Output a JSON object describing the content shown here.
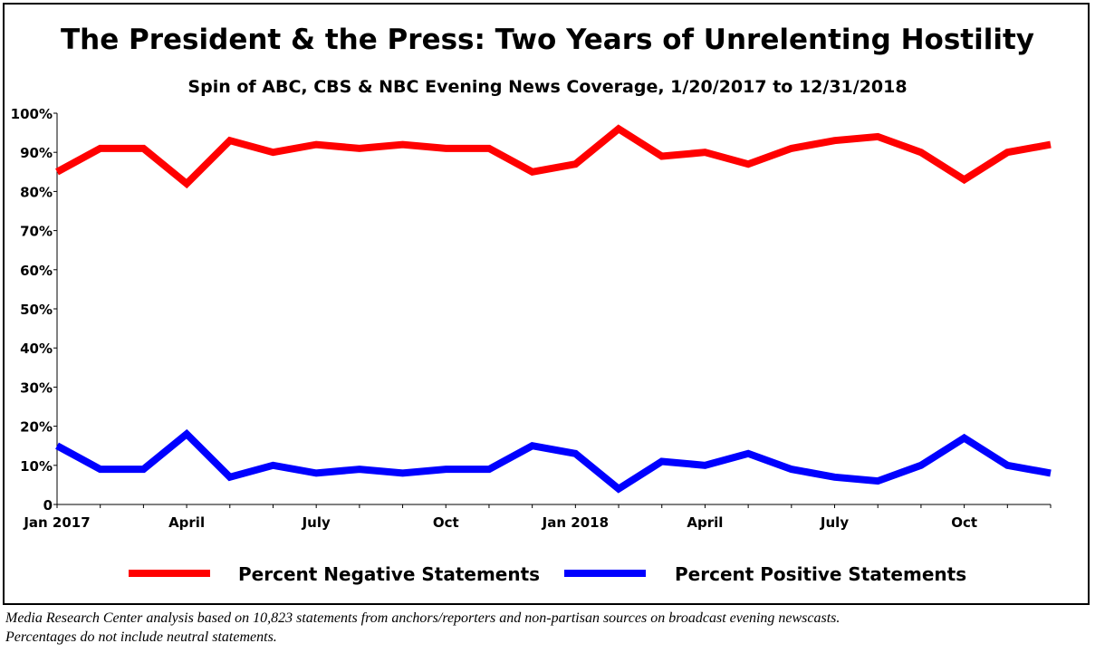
{
  "chart_data": {
    "type": "line",
    "title": "The President & the Press: Two Years of Unrelenting Hostility",
    "subtitle": "Spin of ABC, CBS & NBC Evening News Coverage, 1/20/2017 to 12/31/2018",
    "x": [
      "Jan 2017",
      "Feb 2017",
      "Mar 2017",
      "Apr 2017",
      "May 2017",
      "Jun 2017",
      "Jul 2017",
      "Aug 2017",
      "Sep 2017",
      "Oct 2017",
      "Nov 2017",
      "Dec 2017",
      "Jan 2018",
      "Feb 2018",
      "Mar 2018",
      "Apr 2018",
      "May 2018",
      "Jun 2018",
      "Jul 2018",
      "Aug 2018",
      "Sep 2018",
      "Oct 2018",
      "Nov 2018",
      "Dec 2018"
    ],
    "x_tick_labels": [
      {
        "index": 0,
        "label": "Jan 2017"
      },
      {
        "index": 3,
        "label": "April"
      },
      {
        "index": 6,
        "label": "July"
      },
      {
        "index": 9,
        "label": "Oct"
      },
      {
        "index": 12,
        "label": "Jan 2018"
      },
      {
        "index": 15,
        "label": "April"
      },
      {
        "index": 18,
        "label": "July"
      },
      {
        "index": 21,
        "label": "Oct"
      }
    ],
    "y_tick_labels": [
      "0",
      "10%",
      "20%",
      "30%",
      "40%",
      "50%",
      "60%",
      "70%",
      "80%",
      "90%",
      "100%"
    ],
    "ylim": [
      0,
      100
    ],
    "grid": false,
    "legend_position": "bottom",
    "series": [
      {
        "name": "Percent Negative Statements",
        "color": "#ff0000",
        "values": [
          85,
          91,
          91,
          82,
          93,
          90,
          92,
          91,
          92,
          91,
          91,
          85,
          87,
          96,
          89,
          90,
          87,
          91,
          93,
          94,
          90,
          83,
          90,
          92
        ]
      },
      {
        "name": "Percent Positive Statements",
        "color": "#0000ff",
        "values": [
          15,
          9,
          9,
          18,
          7,
          10,
          8,
          9,
          8,
          9,
          9,
          15,
          13,
          4,
          11,
          10,
          13,
          9,
          7,
          6,
          10,
          17,
          10,
          8
        ]
      }
    ]
  },
  "footnote": {
    "line1": "Media Research Center analysis based on 10,823 statements from anchors/reporters and non-partisan sources on broadcast evening newscasts.",
    "line2": "Percentages do not include neutral statements."
  }
}
